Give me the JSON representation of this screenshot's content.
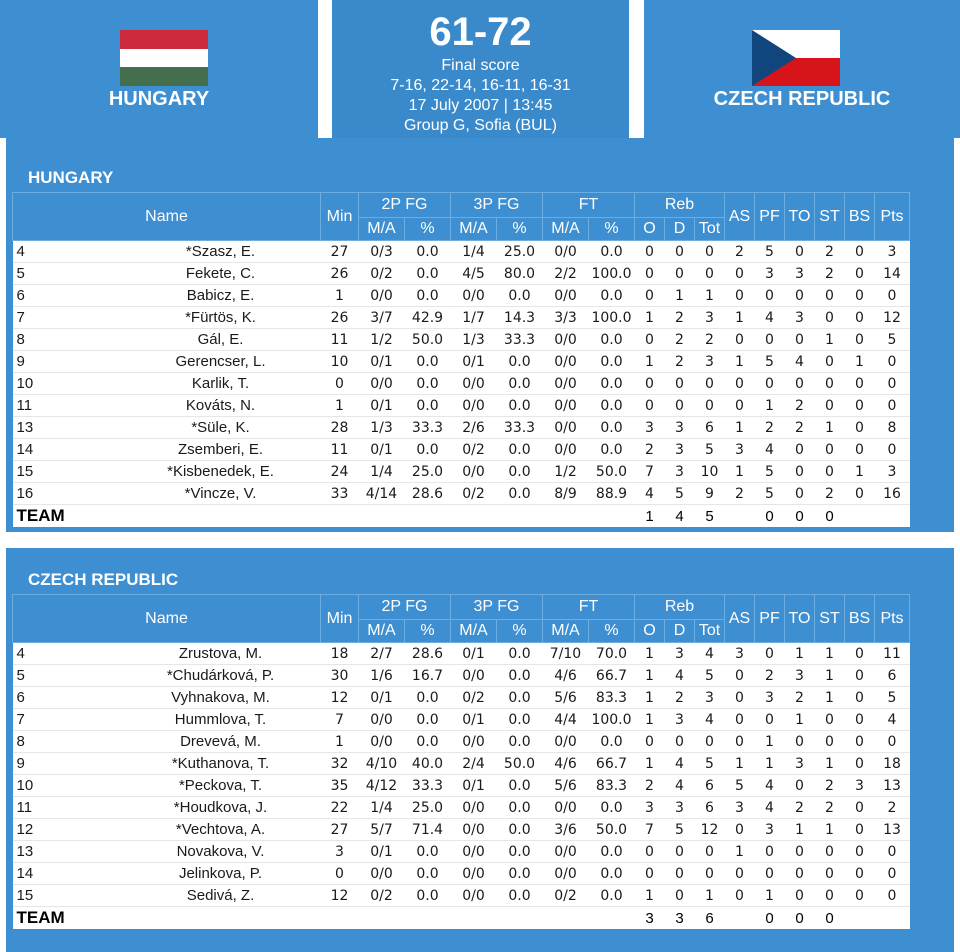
{
  "header": {
    "home_team": "HUNGARY",
    "away_team": "CZECH REPUBLIC",
    "score": "61-72",
    "status": "Final score",
    "quarters": "7-16, 22-14, 16-11, 16-31",
    "datetime": "17 July 2007 | 13:45",
    "venue": "Group G, Sofia (BUL)",
    "colors": {
      "header_blue": "#3d8fd1",
      "stat_blue": "#1e3f9a"
    },
    "flags": {
      "home": "hungary-flag-icon",
      "away": "czech-flag-icon"
    }
  },
  "columns": {
    "name": "Name",
    "min": "Min",
    "fg2": "2P FG",
    "fg3": "3P FG",
    "ft": "FT",
    "reb": "Reb",
    "ma": "M/A",
    "pct": "%",
    "o": "O",
    "d": "D",
    "tot": "Tot",
    "as": "AS",
    "pf": "PF",
    "to": "TO",
    "st": "ST",
    "bs": "BS",
    "pts": "Pts"
  },
  "teams": [
    {
      "title": "HUNGARY",
      "players": [
        {
          "no": "4",
          "name": "*Szasz, E.",
          "min": "27",
          "fg2": "0/3",
          "fg2p": "0.0",
          "fg3": "1/4",
          "fg3p": "25.0",
          "ft": "0/0",
          "ftp": "0.0",
          "o": "0",
          "d": "0",
          "tot": "0",
          "as": "2",
          "pf": "5",
          "to": "0",
          "st": "2",
          "bs": "0",
          "pts": "3"
        },
        {
          "no": "5",
          "name": "Fekete, C.",
          "min": "26",
          "fg2": "0/2",
          "fg2p": "0.0",
          "fg3": "4/5",
          "fg3p": "80.0",
          "ft": "2/2",
          "ftp": "100.0",
          "o": "0",
          "d": "0",
          "tot": "0",
          "as": "0",
          "pf": "3",
          "to": "3",
          "st": "2",
          "bs": "0",
          "pts": "14"
        },
        {
          "no": "6",
          "name": "Babicz, E.",
          "min": "1",
          "fg2": "0/0",
          "fg2p": "0.0",
          "fg3": "0/0",
          "fg3p": "0.0",
          "ft": "0/0",
          "ftp": "0.0",
          "o": "0",
          "d": "1",
          "tot": "1",
          "as": "0",
          "pf": "0",
          "to": "0",
          "st": "0",
          "bs": "0",
          "pts": "0"
        },
        {
          "no": "7",
          "name": "*Fürtös, K.",
          "min": "26",
          "fg2": "3/7",
          "fg2p": "42.9",
          "fg3": "1/7",
          "fg3p": "14.3",
          "ft": "3/3",
          "ftp": "100.0",
          "o": "1",
          "d": "2",
          "tot": "3",
          "as": "1",
          "pf": "4",
          "to": "3",
          "st": "0",
          "bs": "0",
          "pts": "12"
        },
        {
          "no": "8",
          "name": "Gál, E.",
          "min": "11",
          "fg2": "1/2",
          "fg2p": "50.0",
          "fg3": "1/3",
          "fg3p": "33.3",
          "ft": "0/0",
          "ftp": "0.0",
          "o": "0",
          "d": "2",
          "tot": "2",
          "as": "0",
          "pf": "0",
          "to": "0",
          "st": "1",
          "bs": "0",
          "pts": "5"
        },
        {
          "no": "9",
          "name": "Gerencser, L.",
          "min": "10",
          "fg2": "0/1",
          "fg2p": "0.0",
          "fg3": "0/1",
          "fg3p": "0.0",
          "ft": "0/0",
          "ftp": "0.0",
          "o": "1",
          "d": "2",
          "tot": "3",
          "as": "1",
          "pf": "5",
          "to": "4",
          "st": "0",
          "bs": "1",
          "pts": "0"
        },
        {
          "no": "10",
          "name": "Karlik, T.",
          "min": "0",
          "fg2": "0/0",
          "fg2p": "0.0",
          "fg3": "0/0",
          "fg3p": "0.0",
          "ft": "0/0",
          "ftp": "0.0",
          "o": "0",
          "d": "0",
          "tot": "0",
          "as": "0",
          "pf": "0",
          "to": "0",
          "st": "0",
          "bs": "0",
          "pts": "0"
        },
        {
          "no": "11",
          "name": "Kováts, N.",
          "min": "1",
          "fg2": "0/1",
          "fg2p": "0.0",
          "fg3": "0/0",
          "fg3p": "0.0",
          "ft": "0/0",
          "ftp": "0.0",
          "o": "0",
          "d": "0",
          "tot": "0",
          "as": "0",
          "pf": "1",
          "to": "2",
          "st": "0",
          "bs": "0",
          "pts": "0"
        },
        {
          "no": "13",
          "name": "*Süle, K.",
          "min": "28",
          "fg2": "1/3",
          "fg2p": "33.3",
          "fg3": "2/6",
          "fg3p": "33.3",
          "ft": "0/0",
          "ftp": "0.0",
          "o": "3",
          "d": "3",
          "tot": "6",
          "as": "1",
          "pf": "2",
          "to": "2",
          "st": "1",
          "bs": "0",
          "pts": "8"
        },
        {
          "no": "14",
          "name": "Zsemberi, E.",
          "min": "11",
          "fg2": "0/1",
          "fg2p": "0.0",
          "fg3": "0/2",
          "fg3p": "0.0",
          "ft": "0/0",
          "ftp": "0.0",
          "o": "2",
          "d": "3",
          "tot": "5",
          "as": "3",
          "pf": "4",
          "to": "0",
          "st": "0",
          "bs": "0",
          "pts": "0"
        },
        {
          "no": "15",
          "name": "*Kisbenedek, E.",
          "min": "24",
          "fg2": "1/4",
          "fg2p": "25.0",
          "fg3": "0/0",
          "fg3p": "0.0",
          "ft": "1/2",
          "ftp": "50.0",
          "o": "7",
          "d": "3",
          "tot": "10",
          "as": "1",
          "pf": "5",
          "to": "0",
          "st": "0",
          "bs": "1",
          "pts": "3"
        },
        {
          "no": "16",
          "name": "*Vincze, V.",
          "min": "33",
          "fg2": "4/14",
          "fg2p": "28.6",
          "fg3": "0/2",
          "fg3p": "0.0",
          "ft": "8/9",
          "ftp": "88.9",
          "o": "4",
          "d": "5",
          "tot": "9",
          "as": "2",
          "pf": "5",
          "to": "0",
          "st": "2",
          "bs": "0",
          "pts": "16"
        }
      ],
      "team_row": {
        "label": "TEAM",
        "o": "1",
        "d": "4",
        "tot": "5",
        "pf": "0",
        "to": "0",
        "st": "0"
      }
    },
    {
      "title": "CZECH REPUBLIC",
      "players": [
        {
          "no": "4",
          "name": "Zrustova, M.",
          "min": "18",
          "fg2": "2/7",
          "fg2p": "28.6",
          "fg3": "0/1",
          "fg3p": "0.0",
          "ft": "7/10",
          "ftp": "70.0",
          "o": "1",
          "d": "3",
          "tot": "4",
          "as": "3",
          "pf": "0",
          "to": "1",
          "st": "1",
          "bs": "0",
          "pts": "11"
        },
        {
          "no": "5",
          "name": "*Chudárková, P.",
          "min": "30",
          "fg2": "1/6",
          "fg2p": "16.7",
          "fg3": "0/0",
          "fg3p": "0.0",
          "ft": "4/6",
          "ftp": "66.7",
          "o": "1",
          "d": "4",
          "tot": "5",
          "as": "0",
          "pf": "2",
          "to": "3",
          "st": "1",
          "bs": "0",
          "pts": "6"
        },
        {
          "no": "6",
          "name": "Vyhnakova, M.",
          "min": "12",
          "fg2": "0/1",
          "fg2p": "0.0",
          "fg3": "0/2",
          "fg3p": "0.0",
          "ft": "5/6",
          "ftp": "83.3",
          "o": "1",
          "d": "2",
          "tot": "3",
          "as": "0",
          "pf": "3",
          "to": "2",
          "st": "1",
          "bs": "0",
          "pts": "5"
        },
        {
          "no": "7",
          "name": "Hummlova, T.",
          "min": "7",
          "fg2": "0/0",
          "fg2p": "0.0",
          "fg3": "0/1",
          "fg3p": "0.0",
          "ft": "4/4",
          "ftp": "100.0",
          "o": "1",
          "d": "3",
          "tot": "4",
          "as": "0",
          "pf": "0",
          "to": "1",
          "st": "0",
          "bs": "0",
          "pts": "4"
        },
        {
          "no": "8",
          "name": "Drevevá, M.",
          "min": "1",
          "fg2": "0/0",
          "fg2p": "0.0",
          "fg3": "0/0",
          "fg3p": "0.0",
          "ft": "0/0",
          "ftp": "0.0",
          "o": "0",
          "d": "0",
          "tot": "0",
          "as": "0",
          "pf": "1",
          "to": "0",
          "st": "0",
          "bs": "0",
          "pts": "0"
        },
        {
          "no": "9",
          "name": "*Kuthanova, T.",
          "min": "32",
          "fg2": "4/10",
          "fg2p": "40.0",
          "fg3": "2/4",
          "fg3p": "50.0",
          "ft": "4/6",
          "ftp": "66.7",
          "o": "1",
          "d": "4",
          "tot": "5",
          "as": "1",
          "pf": "1",
          "to": "3",
          "st": "1",
          "bs": "0",
          "pts": "18"
        },
        {
          "no": "10",
          "name": "*Peckova, T.",
          "min": "35",
          "fg2": "4/12",
          "fg2p": "33.3",
          "fg3": "0/1",
          "fg3p": "0.0",
          "ft": "5/6",
          "ftp": "83.3",
          "o": "2",
          "d": "4",
          "tot": "6",
          "as": "5",
          "pf": "4",
          "to": "0",
          "st": "2",
          "bs": "3",
          "pts": "13"
        },
        {
          "no": "11",
          "name": "*Houdkova, J.",
          "min": "22",
          "fg2": "1/4",
          "fg2p": "25.0",
          "fg3": "0/0",
          "fg3p": "0.0",
          "ft": "0/0",
          "ftp": "0.0",
          "o": "3",
          "d": "3",
          "tot": "6",
          "as": "3",
          "pf": "4",
          "to": "2",
          "st": "2",
          "bs": "0",
          "pts": "2"
        },
        {
          "no": "12",
          "name": "*Vechtova, A.",
          "min": "27",
          "fg2": "5/7",
          "fg2p": "71.4",
          "fg3": "0/0",
          "fg3p": "0.0",
          "ft": "3/6",
          "ftp": "50.0",
          "o": "7",
          "d": "5",
          "tot": "12",
          "as": "0",
          "pf": "3",
          "to": "1",
          "st": "1",
          "bs": "0",
          "pts": "13"
        },
        {
          "no": "13",
          "name": "Novakova, V.",
          "min": "3",
          "fg2": "0/1",
          "fg2p": "0.0",
          "fg3": "0/0",
          "fg3p": "0.0",
          "ft": "0/0",
          "ftp": "0.0",
          "o": "0",
          "d": "0",
          "tot": "0",
          "as": "1",
          "pf": "0",
          "to": "0",
          "st": "0",
          "bs": "0",
          "pts": "0"
        },
        {
          "no": "14",
          "name": "Jelinkova, P.",
          "min": "0",
          "fg2": "0/0",
          "fg2p": "0.0",
          "fg3": "0/0",
          "fg3p": "0.0",
          "ft": "0/0",
          "ftp": "0.0",
          "o": "0",
          "d": "0",
          "tot": "0",
          "as": "0",
          "pf": "0",
          "to": "0",
          "st": "0",
          "bs": "0",
          "pts": "0"
        },
        {
          "no": "15",
          "name": "Sedivá, Z.",
          "min": "12",
          "fg2": "0/2",
          "fg2p": "0.0",
          "fg3": "0/0",
          "fg3p": "0.0",
          "ft": "0/2",
          "ftp": "0.0",
          "o": "1",
          "d": "0",
          "tot": "1",
          "as": "0",
          "pf": "1",
          "to": "0",
          "st": "0",
          "bs": "0",
          "pts": "0"
        }
      ],
      "team_row": {
        "label": "TEAM",
        "o": "3",
        "d": "3",
        "tot": "6",
        "pf": "0",
        "to": "0",
        "st": "0"
      }
    }
  ]
}
